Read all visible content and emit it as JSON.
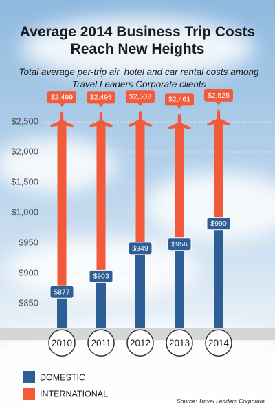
{
  "chart_data": {
    "type": "bar",
    "title": "Average 2014 Business Trip Costs Reach New Heights",
    "subtitle": "Total average per-trip air, hotel and car rental costs among Travel Leaders Corporate clients",
    "categories": [
      "2010",
      "2011",
      "2012",
      "2013",
      "2014"
    ],
    "series": [
      {
        "name": "DOMESTIC",
        "color": "#2d5e95",
        "values": [
          877,
          903,
          949,
          956,
          990
        ],
        "value_labels": [
          "$877",
          "$903",
          "$949",
          "$956",
          "$990"
        ]
      },
      {
        "name": "INTERNATIONAL",
        "color": "#f15a3b",
        "values": [
          2499,
          2496,
          2508,
          2461,
          2525
        ],
        "value_labels": [
          "$2,499",
          "$2,496",
          "$2,508",
          "$2,461",
          "$2,525"
        ]
      }
    ],
    "ylim": [
      810,
      2600
    ],
    "yticks": [
      {
        "value": 850,
        "label": "$850"
      },
      {
        "value": 900,
        "label": "$900"
      },
      {
        "value": 950,
        "label": "$950"
      },
      {
        "value": 1000,
        "label": "$1,000"
      },
      {
        "value": 1500,
        "label": "$1,500"
      },
      {
        "value": 2000,
        "label": "$2,000"
      },
      {
        "value": 2500,
        "label": "$2,500"
      }
    ],
    "grid": true,
    "source": "Source: Travel Leaders Corporate"
  }
}
